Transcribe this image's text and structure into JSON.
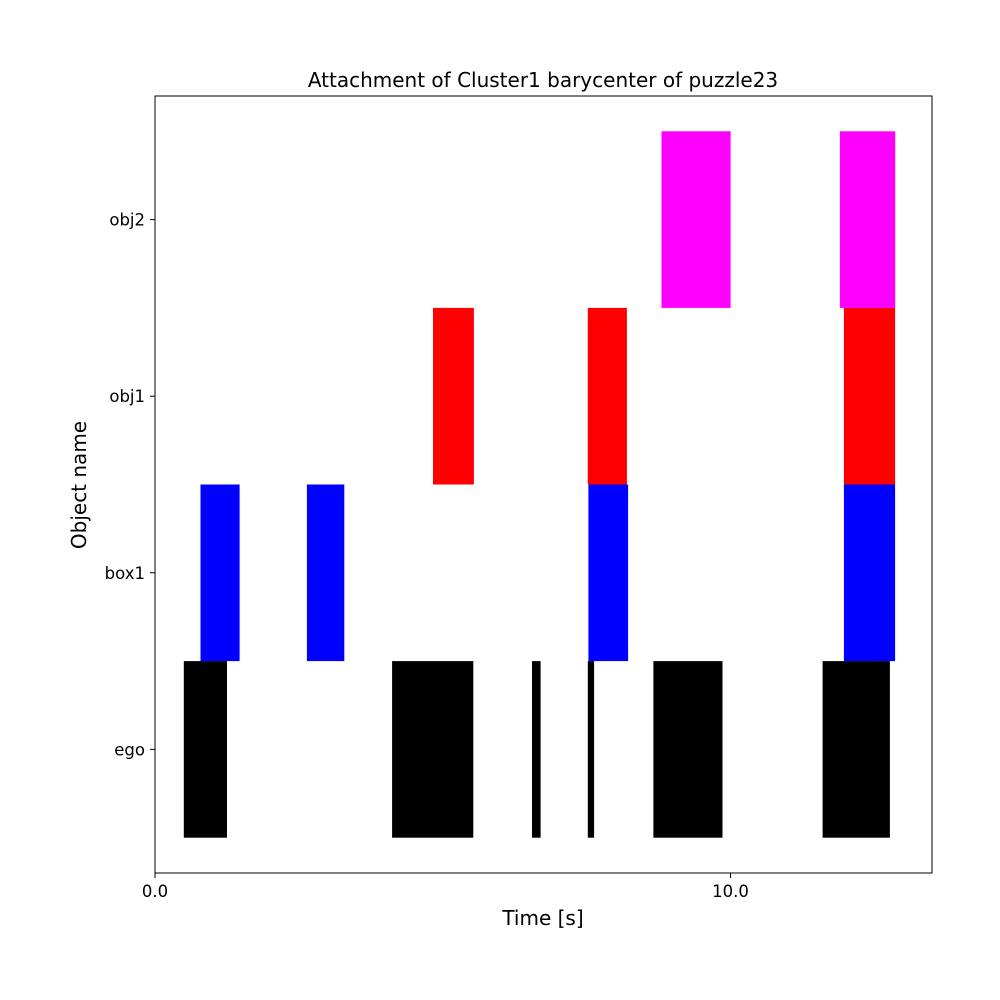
{
  "chart_data": {
    "type": "bar",
    "orientation": "horizontal-broken-bars",
    "title": "Attachment of Cluster1 barycenter of puzzle23",
    "xlabel": "Time [s]",
    "ylabel": "Object name",
    "categories": [
      "ego",
      "box1",
      "obj1",
      "obj2"
    ],
    "xlim": [
      0.0,
      13.5
    ],
    "xticks": [
      0.0,
      10.0
    ],
    "xtick_labels": [
      "0.0",
      "10.0"
    ],
    "grid": false,
    "series": [
      {
        "category": "ego",
        "color": "#000000",
        "intervals": [
          [
            0.5,
            1.25
          ],
          [
            4.12,
            5.53
          ],
          [
            6.55,
            6.7
          ],
          [
            7.52,
            7.63
          ],
          [
            8.66,
            9.86
          ],
          [
            11.6,
            12.77
          ]
        ]
      },
      {
        "category": "box1",
        "color": "#0000ff",
        "intervals": [
          [
            0.79,
            1.47
          ],
          [
            2.64,
            3.29
          ],
          [
            7.53,
            8.22
          ],
          [
            11.97,
            12.86
          ]
        ]
      },
      {
        "category": "obj1",
        "color": "#ff0000",
        "intervals": [
          [
            4.83,
            5.54
          ],
          [
            7.52,
            8.2
          ],
          [
            11.97,
            12.86
          ]
        ]
      },
      {
        "category": "obj2",
        "color": "#ff00ff",
        "intervals": [
          [
            8.8,
            10.0
          ],
          [
            11.9,
            12.86
          ]
        ]
      }
    ]
  }
}
